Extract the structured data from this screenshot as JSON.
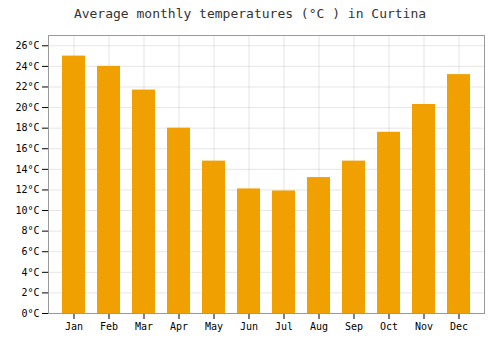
{
  "chart_data": {
    "type": "bar",
    "title": "Average monthly temperatures (°C ) in Curtina",
    "categories": [
      "Jan",
      "Feb",
      "Mar",
      "Apr",
      "May",
      "Jun",
      "Jul",
      "Aug",
      "Sep",
      "Oct",
      "Nov",
      "Dec"
    ],
    "values": [
      25.0,
      24.0,
      21.7,
      18.0,
      14.8,
      12.1,
      11.9,
      13.2,
      14.8,
      17.6,
      20.3,
      23.2
    ],
    "color": "#F0A000",
    "ylim": [
      0,
      27
    ],
    "yticks": [
      {
        "value": 0,
        "label": "0°C"
      },
      {
        "value": 2,
        "label": "2°C"
      },
      {
        "value": 4,
        "label": "4°C"
      },
      {
        "value": 6,
        "label": "6°C"
      },
      {
        "value": 8,
        "label": "8°C"
      },
      {
        "value": 10,
        "label": "10°C"
      },
      {
        "value": 12,
        "label": "12°C"
      },
      {
        "value": 14,
        "label": "14°C"
      },
      {
        "value": 16,
        "label": "16°C"
      },
      {
        "value": 18,
        "label": "18°C"
      },
      {
        "value": 20,
        "label": "20°C"
      },
      {
        "value": 22,
        "label": "22°C"
      },
      {
        "value": 24,
        "label": "24°C"
      },
      {
        "value": 26,
        "label": "26°C"
      }
    ],
    "grid": true
  }
}
